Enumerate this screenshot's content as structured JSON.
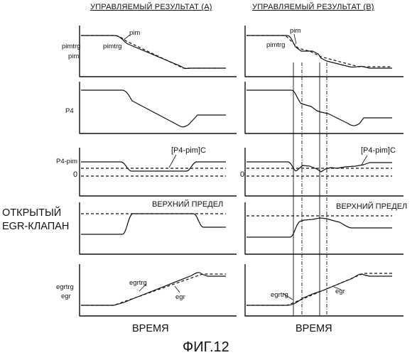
{
  "figure_label": "ФИГ.12",
  "columns": {
    "a": {
      "title": "УПРАВЛЯЕМЫЙ РЕЗУЛЬТАТ (А)",
      "x_label": "ВРЕМЯ"
    },
    "b": {
      "title": "УПРАВЛЯЕМЫЙ РЕЗУЛЬТАТ (В)",
      "x_label": "ВРЕМЯ"
    }
  },
  "rows": {
    "pim": {
      "ylabel_line1": "pimtrg",
      "ylabel_line2": "pim",
      "a": {
        "label_actual": "pim",
        "label_target": "pimtrg"
      },
      "b": {
        "label_actual": "pim",
        "label_target": "pimtrg"
      }
    },
    "p4": {
      "ylabel": "P4"
    },
    "p4pim": {
      "ylabel": "P4-pim",
      "zero": "0",
      "a": {
        "label_limit": "[P4-pim]C"
      },
      "b": {
        "label_limit": "[P4-pim]C"
      }
    },
    "egrv": {
      "ylabel_line1": "ОТКРЫТЫЙ",
      "ylabel_line2": "EGR-КЛАПАН",
      "a": {
        "label_upper": "ВЕРХНИЙ ПРЕДЕЛ"
      },
      "b": {
        "label_upper": "ВЕРХНИЙ ПРЕДЕЛ"
      }
    },
    "egr": {
      "ylabel_line1": "egrtrg",
      "ylabel_line2": "egr",
      "a": {
        "label_target": "egrtrg",
        "label_actual": "egr"
      },
      "b": {
        "label_target": "egrtrg",
        "label_actual": "egr"
      }
    }
  },
  "colors": {
    "ink": "#111111",
    "background": "#ffffff"
  }
}
